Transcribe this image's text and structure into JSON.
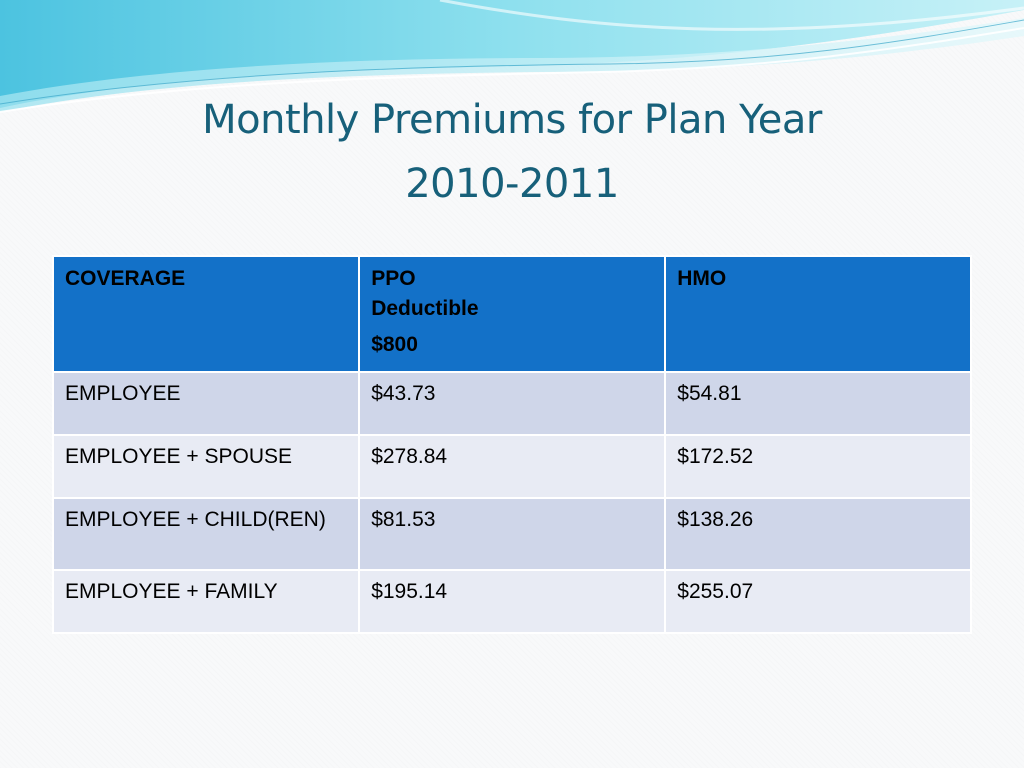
{
  "slide": {
    "title_line1": "Monthly Premiums for Plan Year",
    "title_line2": "2010-2011"
  },
  "table": {
    "headers": {
      "coverage": "COVERAGE",
      "ppo_line1": "PPO",
      "ppo_line2": "Deductible",
      "ppo_line3": "$800",
      "hmo": "HMO"
    },
    "rows": [
      {
        "coverage": "EMPLOYEE",
        "ppo": "$43.73",
        "hmo": "$54.81"
      },
      {
        "coverage": "EMPLOYEE + SPOUSE",
        "ppo": "$278.84",
        "hmo": "$172.52"
      },
      {
        "coverage": "EMPLOYEE + CHILD(REN)",
        "ppo": "$81.53",
        "hmo": "$138.26"
      },
      {
        "coverage": "EMPLOYEE + FAMILY",
        "ppo": "$195.14",
        "hmo": "$255.07"
      }
    ]
  },
  "colors": {
    "title": "#17607a",
    "header_bg": "#1371c8",
    "row_dark": "#cfd6e9",
    "row_light": "#e8ebf4",
    "wave": "#5fd0e6"
  }
}
